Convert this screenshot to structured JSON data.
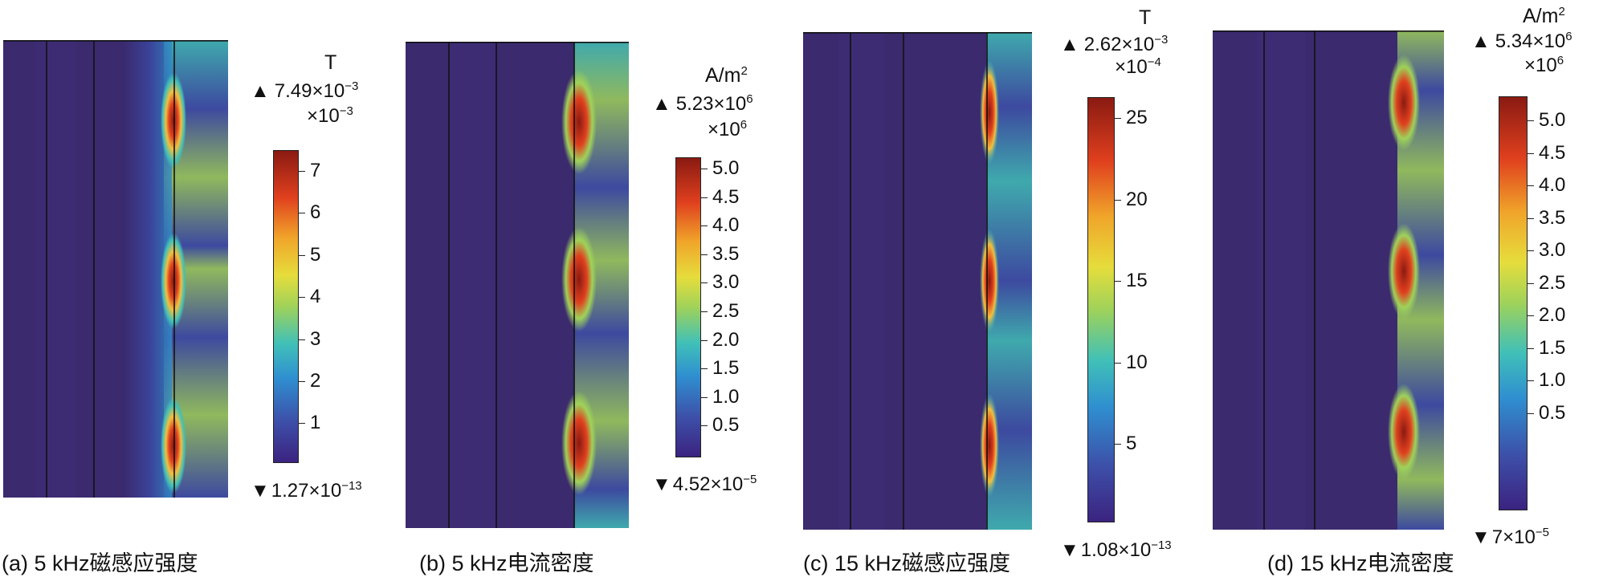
{
  "panels": [
    {
      "id": "a",
      "caption": "(a) 5 kHz磁感应强度",
      "unit": "T",
      "max_label": "7.49×10",
      "max_exp": "−3",
      "multiplier": "×10",
      "multiplier_exp": "−3",
      "min_label": "1.27×10",
      "min_exp": "−13",
      "ticks": [
        "7",
        "6",
        "5",
        "4",
        "3",
        "2",
        "1"
      ]
    },
    {
      "id": "b",
      "caption": "(b) 5 kHz电流密度",
      "unit": "A/m",
      "unit_exp": "2",
      "max_label": "5.23×10",
      "max_exp": "6",
      "multiplier": "×10",
      "multiplier_exp": "6",
      "min_label": "4.52×10",
      "min_exp": "−5",
      "ticks": [
        "5.0",
        "4.5",
        "4.0",
        "3.5",
        "3.0",
        "2.5",
        "2.0",
        "1.5",
        "1.0",
        "0.5"
      ]
    },
    {
      "id": "c",
      "caption": "(c) 15 kHz磁感应强度",
      "unit": "T",
      "max_label": "2.62×10",
      "max_exp": "−3",
      "multiplier": "×10",
      "multiplier_exp": "−4",
      "min_label": "1.08×10",
      "min_exp": "−13",
      "ticks": [
        "25",
        "20",
        "15",
        "10",
        "5"
      ]
    },
    {
      "id": "d",
      "caption": "(d) 15 kHz电流密度",
      "unit": "A/m",
      "unit_exp": "2",
      "max_label": "5.34×10",
      "max_exp": "6",
      "multiplier": "×10",
      "multiplier_exp": "6",
      "min_label": "7×10",
      "min_exp": "−5",
      "ticks": [
        "5.0",
        "4.5",
        "4.0",
        "3.5",
        "3.0",
        "2.5",
        "2.0",
        "1.5",
        "1.0",
        "0.5"
      ]
    }
  ],
  "colors": {
    "background_field": "#3b2a6e",
    "hot": "#8a1a12",
    "warm": "#f0a52a",
    "mid": "#40c0b8",
    "cool": "#3d4fa8"
  }
}
